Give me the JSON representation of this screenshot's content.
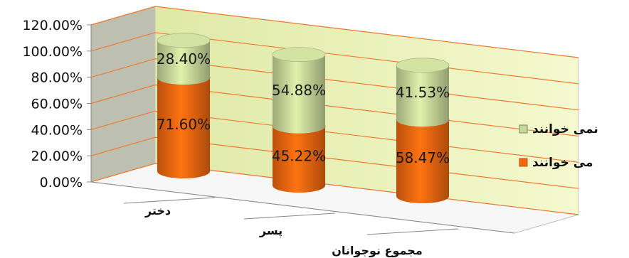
{
  "chart_data": {
    "type": "bar",
    "stacked": true,
    "style": "3d-cylinder",
    "categories": [
      "دختر",
      "پسر",
      "مجموع نوجوانان"
    ],
    "series": [
      {
        "name": "می خوانند",
        "values": [
          71.6,
          45.22,
          58.47
        ],
        "labels": [
          "71.60%",
          "45.22%",
          "58.47%"
        ],
        "color": "#f0670f"
      },
      {
        "name": "نمی خوانند",
        "values": [
          28.4,
          54.88,
          41.53
        ],
        "labels": [
          "28.40%",
          "54.88%",
          "41.53%"
        ],
        "color": "#c9d89a"
      }
    ],
    "yticks": [
      "0.00%",
      "20.00%",
      "40.00%",
      "60.00%",
      "80.00%",
      "100.00%",
      "120.00%"
    ],
    "ylim": [
      0,
      120
    ],
    "grid": true,
    "legend_position": "right",
    "wall_color": "#f4f9cf",
    "grid_color": "#ee7a30"
  }
}
